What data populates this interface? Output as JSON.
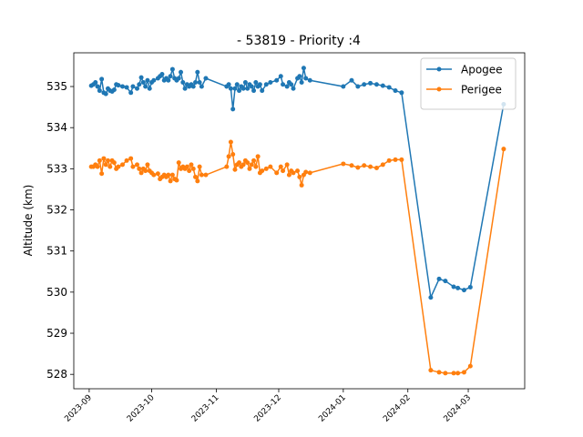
{
  "chart_data": {
    "type": "line",
    "title": "- 53819 - Priority :4",
    "ylabel": "Altitude (km)",
    "x": [
      1,
      2,
      3,
      4,
      5,
      6,
      7,
      8,
      9,
      10,
      11,
      12,
      13,
      14,
      16,
      18,
      20,
      21,
      23,
      24,
      25,
      26,
      27,
      28,
      29,
      30,
      31,
      33,
      34,
      35,
      36,
      37,
      38,
      39,
      40,
      41,
      42,
      43,
      44,
      45,
      46,
      47,
      48,
      49,
      50,
      51,
      52,
      53,
      54,
      56,
      66,
      67,
      68,
      69,
      70,
      71,
      72,
      73,
      74,
      75,
      76,
      77,
      78,
      79,
      80,
      81,
      82,
      83,
      85,
      87,
      90,
      92,
      93,
      95,
      96,
      97,
      98,
      100,
      101,
      102,
      103,
      104,
      106,
      122,
      126,
      129,
      132,
      135,
      138,
      141,
      144,
      147,
      150,
      164,
      168,
      171,
      175,
      177,
      180,
      183,
      199
    ],
    "series": [
      {
        "name": "Apogee",
        "color": "#1f77b4",
        "values": [
          535.02,
          535.05,
          535.1,
          535.0,
          534.9,
          535.18,
          534.85,
          534.82,
          534.95,
          534.9,
          534.88,
          534.92,
          535.05,
          535.03,
          535.0,
          534.98,
          534.85,
          535.0,
          534.95,
          535.05,
          535.22,
          535.1,
          535.0,
          535.15,
          534.95,
          535.1,
          535.15,
          535.2,
          535.25,
          535.3,
          535.15,
          535.2,
          535.15,
          535.25,
          535.42,
          535.2,
          535.15,
          535.2,
          535.35,
          535.1,
          534.95,
          535.05,
          535.0,
          535.05,
          535.0,
          535.1,
          535.35,
          535.1,
          535.0,
          535.2,
          535.0,
          535.05,
          534.95,
          534.45,
          534.95,
          535.05,
          534.9,
          535.0,
          534.95,
          535.1,
          534.95,
          535.05,
          535.0,
          534.9,
          535.1,
          535.0,
          535.05,
          534.9,
          535.05,
          535.1,
          535.15,
          535.25,
          535.05,
          535.0,
          535.1,
          535.05,
          534.95,
          535.2,
          535.25,
          535.1,
          535.45,
          535.2,
          535.15,
          535.0,
          535.15,
          535.0,
          535.05,
          535.08,
          535.05,
          535.02,
          534.98,
          534.9,
          534.85,
          529.87,
          530.32,
          530.27,
          530.13,
          530.1,
          530.05,
          530.12,
          534.57
        ]
      },
      {
        "name": "Perigee",
        "color": "#ff7f0e",
        "values": [
          533.05,
          533.05,
          533.1,
          533.05,
          533.2,
          532.88,
          533.25,
          533.1,
          533.2,
          533.05,
          533.2,
          533.15,
          533.0,
          533.05,
          533.1,
          533.2,
          533.25,
          533.05,
          533.1,
          533.0,
          532.9,
          533.0,
          532.95,
          533.1,
          532.95,
          532.9,
          532.85,
          532.88,
          532.75,
          532.8,
          532.85,
          532.8,
          532.85,
          532.7,
          532.85,
          532.75,
          532.72,
          533.15,
          533.0,
          533.05,
          533.0,
          533.05,
          532.95,
          533.1,
          533.0,
          532.8,
          532.7,
          533.05,
          532.85,
          532.85,
          533.05,
          533.3,
          533.65,
          533.35,
          532.98,
          533.1,
          533.15,
          533.05,
          533.1,
          533.2,
          533.15,
          533.0,
          533.1,
          533.2,
          533.05,
          533.3,
          532.9,
          532.95,
          533.0,
          533.05,
          532.9,
          533.05,
          532.95,
          533.1,
          532.85,
          532.95,
          532.9,
          532.95,
          532.8,
          532.6,
          532.85,
          532.92,
          532.9,
          533.12,
          533.08,
          533.03,
          533.08,
          533.05,
          533.02,
          533.1,
          533.2,
          533.22,
          533.22,
          528.1,
          528.05,
          528.03,
          528.03,
          528.03,
          528.05,
          528.2,
          533.48
        ]
      }
    ],
    "xlim": [
      -7.4,
      209.1
    ],
    "xticks": [
      {
        "value": 0,
        "label": "2023-09"
      },
      {
        "value": 30,
        "label": "2023-10"
      },
      {
        "value": 61,
        "label": "2023-11"
      },
      {
        "value": 91,
        "label": "2023-12"
      },
      {
        "value": 122,
        "label": "2024-01"
      },
      {
        "value": 153,
        "label": "2024-02"
      },
      {
        "value": 182,
        "label": "2024-03"
      }
    ],
    "ylim": [
      527.65,
      535.82
    ],
    "yticks": [
      528,
      529,
      530,
      531,
      532,
      533,
      534,
      535
    ],
    "legend": "upper right"
  }
}
